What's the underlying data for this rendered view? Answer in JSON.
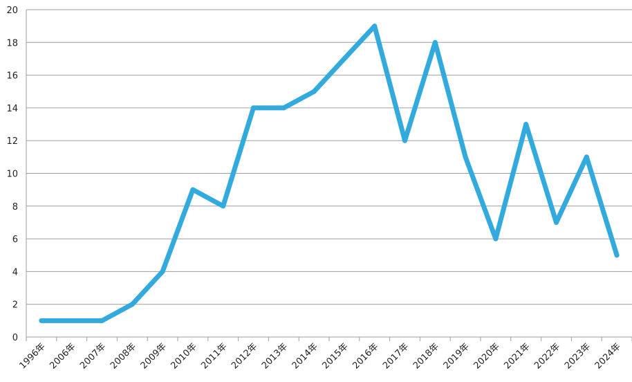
{
  "chart_data": {
    "type": "line",
    "title": "",
    "xlabel": "",
    "ylabel": "",
    "categories": [
      "1996年",
      "2006年",
      "2007年",
      "2008年",
      "2009年",
      "2010年",
      "2011年",
      "2012年",
      "2013年",
      "2014年",
      "2015年",
      "2016年",
      "2017年",
      "2018年",
      "2019年",
      "2020年",
      "2021年",
      "2022年",
      "2023年",
      "2024年"
    ],
    "series": [
      {
        "values": [
          1,
          1,
          1,
          2,
          4,
          9,
          8,
          14,
          14,
          15,
          17,
          19,
          12,
          18,
          11,
          6,
          13,
          7,
          11,
          5
        ]
      }
    ],
    "ylim": [
      0,
      20
    ],
    "yticks": [
      0,
      2,
      4,
      6,
      8,
      10,
      12,
      14,
      16,
      18,
      20
    ],
    "grid": true,
    "legend": "none",
    "colors": {
      "line": "#33aadd",
      "grid": "#9e9e9e",
      "text": "#222222"
    }
  }
}
